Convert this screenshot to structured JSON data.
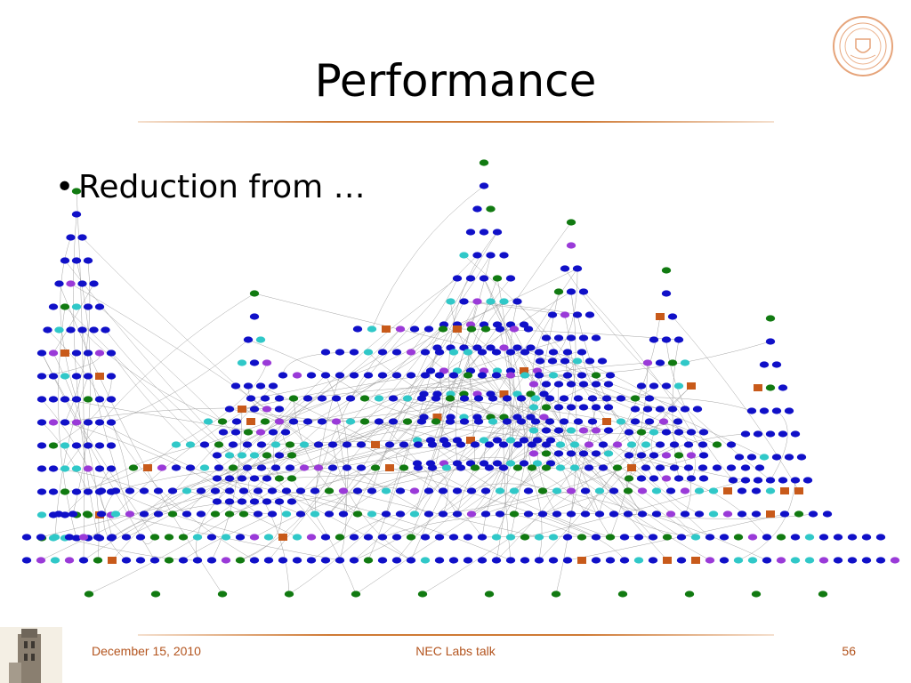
{
  "slide": {
    "title": "Performance",
    "bullets": [
      {
        "marker": "•",
        "text": "Reduction from …"
      }
    ]
  },
  "footer": {
    "date": "December 15, 2010",
    "talk": "NEC Labs talk",
    "page": "56"
  },
  "colors": {
    "accent": "#cf7a35",
    "footer_text": "#b3541e",
    "node_blue": "#1010c8",
    "node_green": "#117a11",
    "node_cyan": "#30c8c8",
    "node_purple": "#9a3ad8",
    "node_orange": "#c85a1a",
    "edge": "#9a9a9a"
  },
  "icons": {
    "seal": "university-seal-icon",
    "tower": "campus-tower-icon"
  }
}
